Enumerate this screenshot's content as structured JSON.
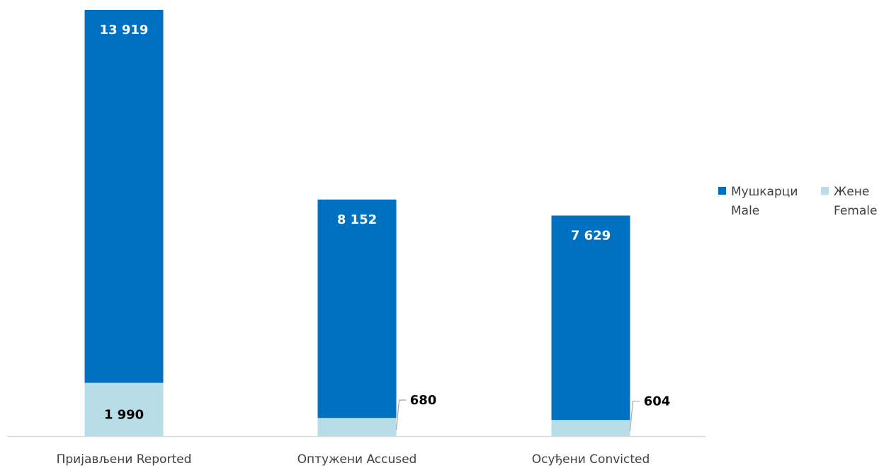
{
  "chart_data": {
    "type": "bar",
    "stacked": true,
    "categories": [
      "Пријављени Reported",
      "Оптужени Accused",
      "Осуђени Convicted"
    ],
    "series": [
      {
        "name": "Жене Female",
        "legend_lines": [
          "Жене",
          "Female"
        ],
        "color": "#b7dde8",
        "values": [
          1990,
          680,
          604
        ],
        "labels": [
          "1 990",
          "680",
          "604"
        ]
      },
      {
        "name": "Мушкарци Male",
        "legend_lines": [
          "Мушкарци",
          "Male"
        ],
        "color": "#0070c0",
        "values": [
          13919,
          8152,
          7629
        ],
        "labels": [
          "13 919",
          "8 152",
          "7 629"
        ]
      }
    ],
    "legend_position": "right",
    "grid": false,
    "title": "",
    "xlabel": "",
    "ylabel": ""
  }
}
